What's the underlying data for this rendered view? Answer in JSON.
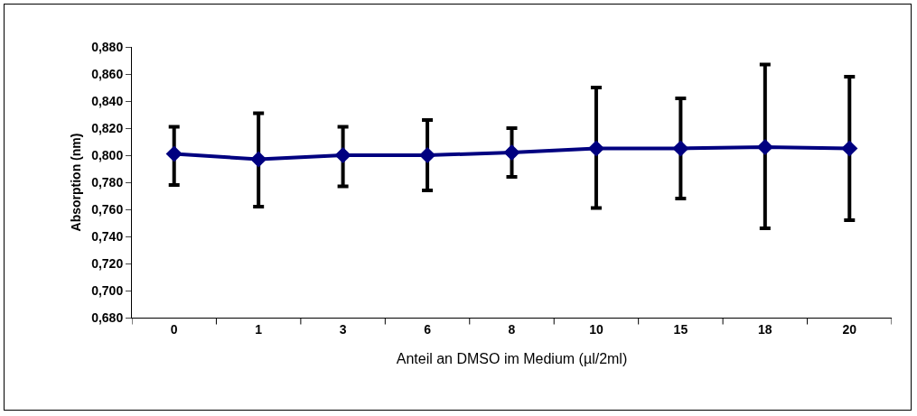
{
  "chart_data": {
    "type": "line",
    "xlabel": "Anteil an DMSO im Medium (µl/2ml)",
    "ylabel": "Absorption (nm)",
    "categories": [
      "0",
      "1",
      "3",
      "6",
      "8",
      "10",
      "15",
      "18",
      "20"
    ],
    "series": [
      {
        "color": "#000080",
        "values": [
          0.801,
          0.797,
          0.8,
          0.8,
          0.802,
          0.805,
          0.805,
          0.806,
          0.805
        ],
        "errors": [
          [
            0.778,
            0.821
          ],
          [
            0.762,
            0.831
          ],
          [
            0.777,
            0.821
          ],
          [
            0.774,
            0.826
          ],
          [
            0.784,
            0.82
          ],
          [
            0.761,
            0.85
          ],
          [
            0.768,
            0.842
          ],
          [
            0.746,
            0.867
          ],
          [
            0.752,
            0.858
          ]
        ]
      }
    ],
    "ylim": [
      0.68,
      0.88
    ],
    "yticks": [
      {
        "value": 0.68,
        "label": "0,680"
      },
      {
        "value": 0.7,
        "label": "0,700"
      },
      {
        "value": 0.72,
        "label": "0,720"
      },
      {
        "value": 0.74,
        "label": "0,740"
      },
      {
        "value": 0.76,
        "label": "0,760"
      },
      {
        "value": 0.78,
        "label": "0,780"
      },
      {
        "value": 0.8,
        "label": "0,800"
      },
      {
        "value": 0.82,
        "label": "0,820"
      },
      {
        "value": 0.84,
        "label": "0,840"
      },
      {
        "value": 0.86,
        "label": "0,860"
      },
      {
        "value": 0.88,
        "label": "0,880"
      }
    ],
    "grid": false,
    "marker": "diamond",
    "line_style": "solid"
  }
}
